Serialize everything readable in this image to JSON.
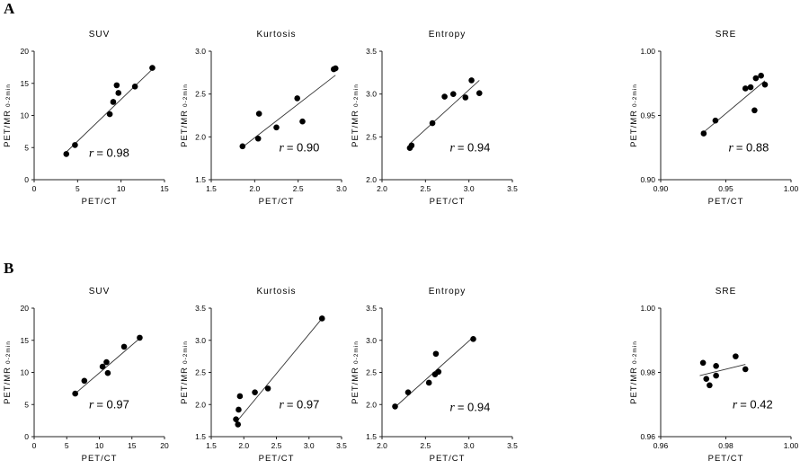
{
  "figure": {
    "panels": [
      {
        "id": "A",
        "label": "A"
      },
      {
        "id": "B",
        "label": "B"
      }
    ]
  },
  "chart_data": [
    {
      "type": "scatter",
      "panel": "A",
      "title": "SUV",
      "xlabel": "PET/CT",
      "ylabel": "PET/MR",
      "ylabel_sub": "0-2min",
      "xlim": [
        0,
        15
      ],
      "ylim": [
        0,
        20
      ],
      "xticks": [
        "0",
        "5",
        "10",
        "15"
      ],
      "yticks": [
        "0",
        "5",
        "10",
        "15",
        "20"
      ],
      "x": [
        3.7,
        4.7,
        8.7,
        9.1,
        9.5,
        9.7,
        11.6,
        13.6
      ],
      "y": [
        4.0,
        5.4,
        10.2,
        12.1,
        14.7,
        13.5,
        14.5,
        17.4
      ],
      "fit": {
        "x": [
          3.7,
          13.6
        ],
        "y": [
          4.3,
          17.2
        ]
      },
      "r_symbol": "r",
      "r_text": "= 0.98"
    },
    {
      "type": "scatter",
      "panel": "A",
      "title": "Kurtosis",
      "xlabel": "PET/CT",
      "ylabel": "PET/MR",
      "ylabel_sub": "0-2min",
      "xlim": [
        1.5,
        3.0
      ],
      "ylim": [
        1.5,
        3.0
      ],
      "xticks": [
        "1.5",
        "2.0",
        "2.5",
        "3.0"
      ],
      "yticks": [
        "1.5",
        "2.0",
        "2.5",
        "3.0"
      ],
      "x": [
        1.86,
        2.04,
        2.05,
        2.25,
        2.49,
        2.55,
        2.91,
        2.93
      ],
      "y": [
        1.89,
        1.98,
        2.27,
        2.11,
        2.45,
        2.18,
        2.79,
        2.8
      ],
      "fit": {
        "x": [
          1.86,
          2.93
        ],
        "y": [
          1.88,
          2.72
        ]
      },
      "r_symbol": "r",
      "r_text": "= 0.90"
    },
    {
      "type": "scatter",
      "panel": "A",
      "title": "Entropy",
      "xlabel": "PET/CT",
      "ylabel": "PET/MR",
      "ylabel_sub": "0-2min",
      "xlim": [
        2.0,
        3.5
      ],
      "ylim": [
        2.0,
        3.5
      ],
      "xticks": [
        "2.0",
        "2.5",
        "3.0",
        "3.5"
      ],
      "yticks": [
        "2.0",
        "2.5",
        "3.0",
        "3.5"
      ],
      "x": [
        2.32,
        2.34,
        2.58,
        2.72,
        2.82,
        2.96,
        3.03,
        3.12
      ],
      "y": [
        2.37,
        2.4,
        2.66,
        2.97,
        3.0,
        2.96,
        3.16,
        3.01
      ],
      "fit": {
        "x": [
          2.32,
          3.12
        ],
        "y": [
          2.42,
          3.16
        ]
      },
      "r_symbol": "r",
      "r_text": "= 0.94"
    },
    {
      "type": "scatter",
      "panel": "A",
      "title": "SRE",
      "xlabel": "PET/CT",
      "ylabel": "PET/MR",
      "ylabel_sub": "0-2min",
      "xlim": [
        0.9,
        1.0
      ],
      "ylim": [
        0.9,
        1.0
      ],
      "xticks": [
        "0.90",
        "0.95",
        "1.00"
      ],
      "yticks": [
        "0.90",
        "0.95",
        "1.00"
      ],
      "x": [
        0.933,
        0.942,
        0.965,
        0.969,
        0.972,
        0.973,
        0.977,
        0.98
      ],
      "y": [
        0.936,
        0.946,
        0.971,
        0.972,
        0.954,
        0.979,
        0.981,
        0.974
      ],
      "fit": {
        "x": [
          0.933,
          0.98
        ],
        "y": [
          0.937,
          0.977
        ]
      },
      "r_symbol": "r",
      "r_text": "= 0.88"
    },
    {
      "type": "scatter",
      "panel": "B",
      "title": "SUV",
      "xlabel": "PET/CT",
      "ylabel": "PET/MR",
      "ylabel_sub": "0-2min",
      "xlim": [
        0,
        20
      ],
      "ylim": [
        0,
        20
      ],
      "xticks": [
        "0",
        "5",
        "10",
        "15",
        "20"
      ],
      "yticks": [
        "0",
        "5",
        "10",
        "15",
        "20"
      ],
      "x": [
        6.3,
        7.7,
        10.5,
        11.1,
        11.3,
        13.8,
        16.2
      ],
      "y": [
        6.7,
        8.7,
        10.9,
        11.6,
        9.9,
        14.0,
        15.4
      ],
      "fit": {
        "x": [
          6.3,
          16.2
        ],
        "y": [
          6.7,
          15.3
        ]
      },
      "r_symbol": "r",
      "r_text": "= 0.97"
    },
    {
      "type": "scatter",
      "panel": "B",
      "title": "Kurtosis",
      "xlabel": "PET/CT",
      "ylabel": "PET/MR",
      "ylabel_sub": "0-2min",
      "xlim": [
        1.5,
        3.5
      ],
      "ylim": [
        1.5,
        3.5
      ],
      "xticks": [
        "1.5",
        "2.0",
        "2.5",
        "3.0",
        "3.5"
      ],
      "yticks": [
        "1.5",
        "2.0",
        "2.5",
        "3.0",
        "3.5"
      ],
      "x": [
        1.88,
        1.91,
        1.92,
        1.94,
        2.17,
        2.37,
        3.2
      ],
      "y": [
        1.77,
        1.69,
        1.92,
        2.13,
        2.19,
        2.25,
        3.34
      ],
      "fit": {
        "x": [
          1.88,
          3.2
        ],
        "y": [
          1.72,
          3.34
        ]
      },
      "r_symbol": "r",
      "r_text": "= 0.97"
    },
    {
      "type": "scatter",
      "panel": "B",
      "title": "Entropy",
      "xlabel": "PET/CT",
      "ylabel": "PET/MR",
      "ylabel_sub": "0-2min",
      "xlim": [
        2.0,
        3.5
      ],
      "ylim": [
        1.5,
        3.5
      ],
      "xticks": [
        "2.0",
        "2.5",
        "3.0",
        "3.5"
      ],
      "yticks": [
        "1.5",
        "2.0",
        "2.5",
        "3.0",
        "3.5"
      ],
      "x": [
        2.15,
        2.3,
        2.54,
        2.61,
        2.62,
        2.65,
        3.05
      ],
      "y": [
        1.97,
        2.19,
        2.34,
        2.47,
        2.79,
        2.51,
        3.02
      ],
      "fit": {
        "x": [
          2.15,
          3.05
        ],
        "y": [
          1.96,
          3.05
        ]
      },
      "r_symbol": "r",
      "r_text": "= 0.94"
    },
    {
      "type": "scatter",
      "panel": "B",
      "title": "SRE",
      "xlabel": "PET/CT",
      "ylabel": "PET/MR",
      "ylabel_sub": "0-2min",
      "xlim": [
        0.96,
        1.0
      ],
      "ylim": [
        0.96,
        1.0
      ],
      "xticks": [
        "0.96",
        "0.98",
        "1.00"
      ],
      "yticks": [
        "0.96",
        "0.98",
        "1.00"
      ],
      "x": [
        0.973,
        0.974,
        0.975,
        0.977,
        0.977,
        0.983,
        0.986
      ],
      "y": [
        0.983,
        0.978,
        0.976,
        0.982,
        0.979,
        0.985,
        0.981
      ],
      "fit": {
        "x": [
          0.972,
          0.986
        ],
        "y": [
          0.979,
          0.9825
        ]
      },
      "r_symbol": "r",
      "r_text": "= 0.42"
    }
  ]
}
